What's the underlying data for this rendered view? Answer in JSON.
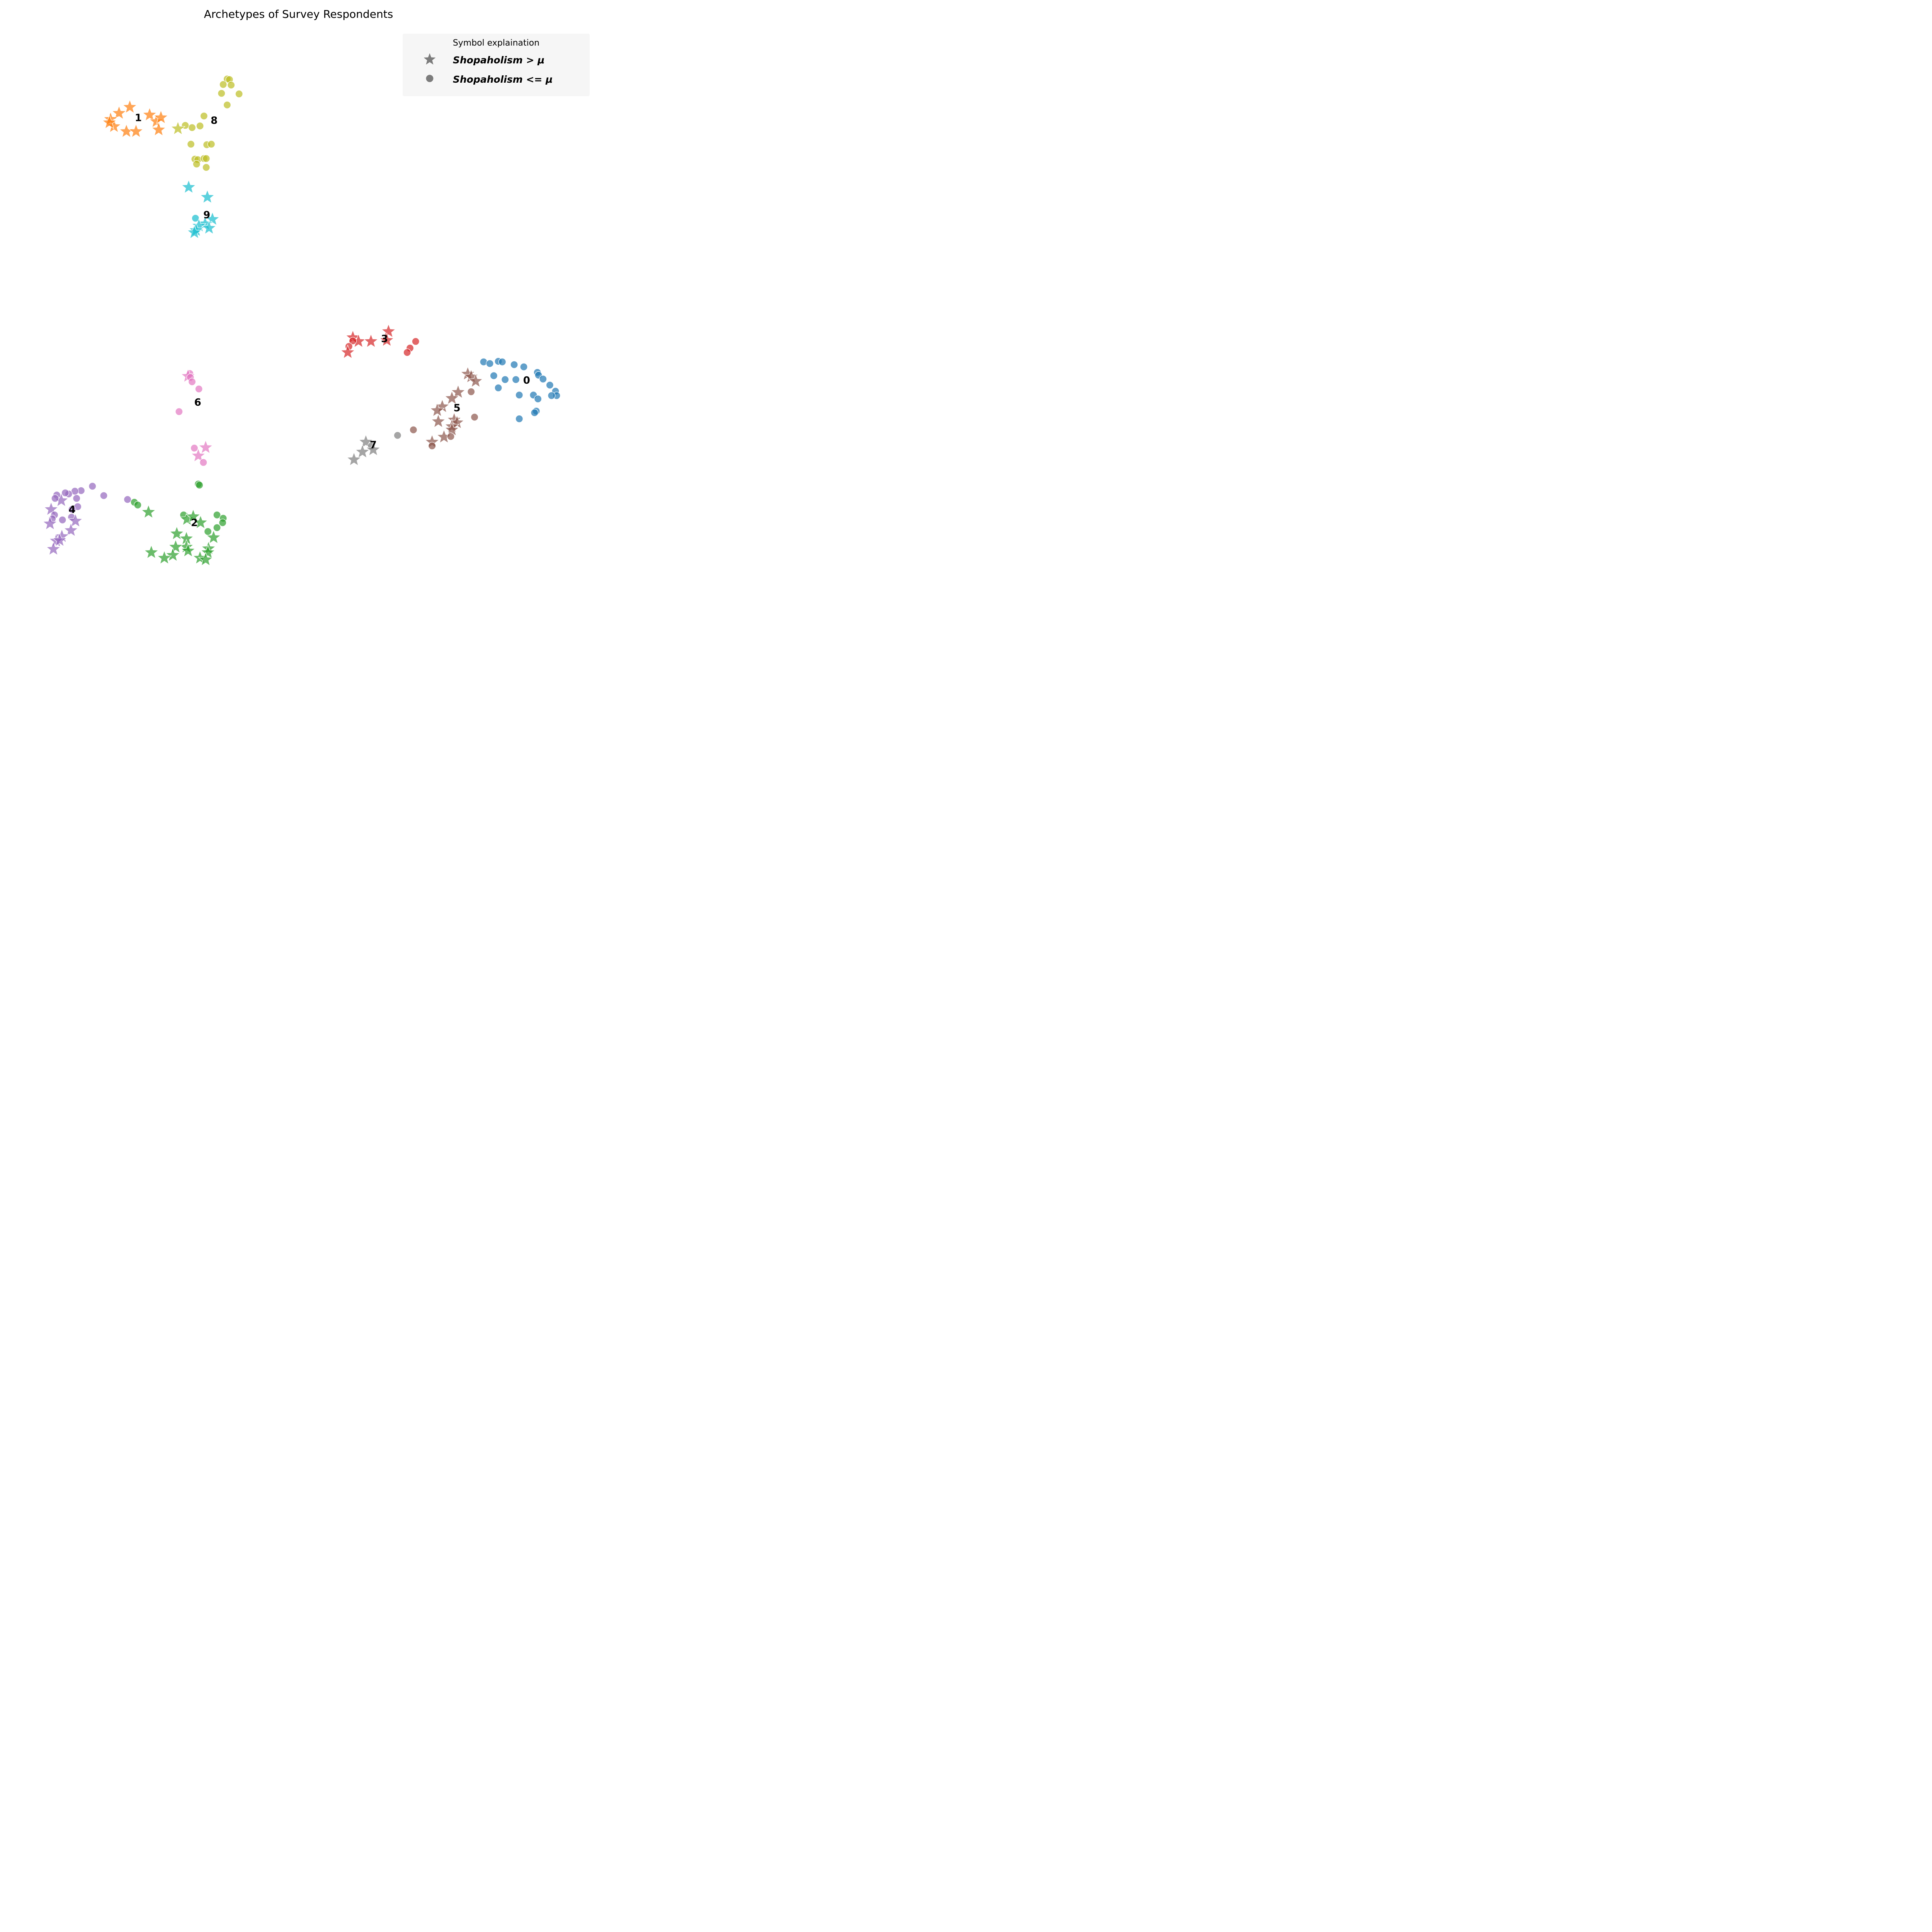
{
  "chart_data": {
    "type": "scatter",
    "title": "Archetypes of Survey Respondents",
    "xlabel": "",
    "ylabel": "",
    "axes_visible": false,
    "grid": false,
    "xlim": [
      0,
      100
    ],
    "ylim": [
      0,
      100
    ],
    "legend": {
      "title": "Symbol explaination",
      "placement": "top-right",
      "entries": [
        {
          "marker": "star",
          "label": "Shopaholism > μ"
        },
        {
          "marker": "circle",
          "label": "Shopaholism <= μ"
        }
      ]
    },
    "clusters": [
      {
        "label": "0",
        "color": "#1f77b4",
        "label_pos": [
          90.3,
          36.8
        ],
        "points": [
          [
            82.7,
            40.1,
            "c"
          ],
          [
            83.8,
            39.8,
            "c"
          ],
          [
            85.3,
            40.2,
            "c"
          ],
          [
            86.0,
            40.1,
            "c"
          ],
          [
            88.1,
            39.6,
            "c"
          ],
          [
            89.8,
            39.2,
            "c"
          ],
          [
            92.2,
            38.2,
            "c"
          ],
          [
            84.5,
            37.6,
            "c"
          ],
          [
            85.3,
            35.4,
            "c"
          ],
          [
            86.5,
            36.9,
            "c"
          ],
          [
            88.4,
            36.9,
            "c"
          ],
          [
            92.4,
            37.7,
            "c"
          ],
          [
            93.2,
            37.0,
            "c"
          ],
          [
            94.4,
            35.9,
            "c"
          ],
          [
            95.4,
            34.8,
            "c"
          ],
          [
            95.6,
            34.0,
            "c"
          ],
          [
            94.7,
            34.0,
            "c"
          ],
          [
            91.5,
            34.1,
            "c"
          ],
          [
            92.3,
            33.4,
            "c"
          ],
          [
            89.0,
            34.1,
            "c"
          ],
          [
            92.0,
            31.2,
            "c"
          ],
          [
            91.7,
            30.9,
            "c"
          ],
          [
            89.0,
            29.8,
            "c"
          ]
        ]
      },
      {
        "label": "1",
        "color": "#ff7f0e",
        "label_pos": [
          21.7,
          84.3
        ],
        "points": [
          [
            20.2,
            86.2,
            "s"
          ],
          [
            18.3,
            85.1,
            "s"
          ],
          [
            16.8,
            84.0,
            "s"
          ],
          [
            17.4,
            82.7,
            "s"
          ],
          [
            19.6,
            81.8,
            "s"
          ],
          [
            21.3,
            81.8,
            "s"
          ],
          [
            23.7,
            84.8,
            "s"
          ],
          [
            24.9,
            83.6,
            "s"
          ],
          [
            25.7,
            84.3,
            "s"
          ],
          [
            25.3,
            82.1,
            "s"
          ],
          [
            16.6,
            83.4,
            "s"
          ]
        ]
      },
      {
        "label": "2",
        "color": "#2ca02c",
        "label_pos": [
          31.6,
          11.0
        ],
        "points": [
          [
            32.3,
            18.0,
            "c"
          ],
          [
            32.5,
            17.8,
            "c"
          ],
          [
            21.0,
            14.7,
            "c"
          ],
          [
            21.6,
            14.2,
            "c"
          ],
          [
            23.5,
            12.9,
            "s"
          ],
          [
            29.7,
            12.4,
            "c"
          ],
          [
            30.3,
            11.6,
            "s"
          ],
          [
            31.4,
            12.1,
            "s"
          ],
          [
            32.7,
            11.0,
            "s"
          ],
          [
            35.6,
            12.4,
            "c"
          ],
          [
            36.7,
            11.8,
            "c"
          ],
          [
            36.6,
            11.0,
            "c"
          ],
          [
            35.6,
            10.1,
            "c"
          ],
          [
            34.0,
            9.4,
            "c"
          ],
          [
            35.0,
            8.3,
            "s"
          ],
          [
            28.5,
            9.0,
            "s"
          ],
          [
            30.2,
            8.1,
            "s"
          ],
          [
            30.2,
            6.6,
            "s"
          ],
          [
            30.5,
            5.9,
            "s"
          ],
          [
            28.3,
            6.6,
            "s"
          ],
          [
            27.8,
            5.1,
            "s"
          ],
          [
            26.3,
            4.6,
            "s"
          ],
          [
            24.0,
            5.6,
            "s"
          ],
          [
            34.1,
            6.3,
            "s"
          ],
          [
            34.0,
            5.6,
            "s"
          ],
          [
            32.6,
            4.6,
            "s"
          ],
          [
            33.6,
            4.3,
            "s"
          ]
        ]
      },
      {
        "label": "3",
        "color": "#d62728",
        "label_pos": [
          65.2,
          44.3
        ],
        "points": [
          [
            65.9,
            45.6,
            "s"
          ],
          [
            59.6,
            44.5,
            "s"
          ],
          [
            60.6,
            43.8,
            "s"
          ],
          [
            62.8,
            43.8,
            "s"
          ],
          [
            65.6,
            44.0,
            "s"
          ],
          [
            59.6,
            43.9,
            "c"
          ],
          [
            58.9,
            42.9,
            "c"
          ],
          [
            58.7,
            41.8,
            "s"
          ],
          [
            70.7,
            43.8,
            "c"
          ],
          [
            69.7,
            42.6,
            "c"
          ],
          [
            69.2,
            41.8,
            "c"
          ]
        ]
      },
      {
        "label": "4",
        "color": "#9467bd",
        "label_pos": [
          10.0,
          13.4
        ],
        "points": [
          [
            13.6,
            17.6,
            "c"
          ],
          [
            11.6,
            16.8,
            "c"
          ],
          [
            10.5,
            16.7,
            "c"
          ],
          [
            9.4,
            16.2,
            "c"
          ],
          [
            7.3,
            16.0,
            "c"
          ],
          [
            8.8,
            16.4,
            "c"
          ],
          [
            15.6,
            15.9,
            "c"
          ],
          [
            19.8,
            15.2,
            "c"
          ],
          [
            10.8,
            15.4,
            "c"
          ],
          [
            8.1,
            15.0,
            "s"
          ],
          [
            7.0,
            15.4,
            "c"
          ],
          [
            11.0,
            13.9,
            "c"
          ],
          [
            10.0,
            13.4,
            "c"
          ],
          [
            6.3,
            13.4,
            "s"
          ],
          [
            6.9,
            12.4,
            "c"
          ],
          [
            6.5,
            11.7,
            "c"
          ],
          [
            8.3,
            11.5,
            "c"
          ],
          [
            9.9,
            12.0,
            "c"
          ],
          [
            10.6,
            11.3,
            "s"
          ],
          [
            6.1,
            10.8,
            "s"
          ],
          [
            9.8,
            9.6,
            "s"
          ],
          [
            8.2,
            8.5,
            "s"
          ],
          [
            7.2,
            7.7,
            "s"
          ],
          [
            7.8,
            7.8,
            "s"
          ],
          [
            6.7,
            6.2,
            "s"
          ]
        ]
      },
      {
        "label": "5",
        "color": "#8c564b",
        "label_pos": [
          78.0,
          31.8
        ],
        "points": [
          [
            79.9,
            37.9,
            "s"
          ],
          [
            80.5,
            37.4,
            "s"
          ],
          [
            81.3,
            36.6,
            "s"
          ],
          [
            78.2,
            34.6,
            "s"
          ],
          [
            77.1,
            33.5,
            "s"
          ],
          [
            75.4,
            32.0,
            "s"
          ],
          [
            74.5,
            31.3,
            "s"
          ],
          [
            77.5,
            29.6,
            "s"
          ],
          [
            78.0,
            29.1,
            "s"
          ],
          [
            74.7,
            29.3,
            "s"
          ],
          [
            77.1,
            28.4,
            "s"
          ],
          [
            77.1,
            27.8,
            "s"
          ],
          [
            75.7,
            26.5,
            "s"
          ],
          [
            73.6,
            25.6,
            "s"
          ],
          [
            76.9,
            26.6,
            "c"
          ],
          [
            80.5,
            34.7,
            "c"
          ],
          [
            81.1,
            30.1,
            "c"
          ],
          [
            70.3,
            27.8,
            "c"
          ],
          [
            73.6,
            24.9,
            "c"
          ]
        ]
      },
      {
        "label": "6",
        "color": "#e377c2",
        "label_pos": [
          32.2,
          32.8
        ],
        "points": [
          [
            30.8,
            38.0,
            "c"
          ],
          [
            30.5,
            37.5,
            "s"
          ],
          [
            30.9,
            37.3,
            "c"
          ],
          [
            31.2,
            36.5,
            "c"
          ],
          [
            32.4,
            35.2,
            "c"
          ],
          [
            28.9,
            31.1,
            "c"
          ],
          [
            31.6,
            24.5,
            "c"
          ],
          [
            33.6,
            24.6,
            "s"
          ],
          [
            32.3,
            23.1,
            "s"
          ],
          [
            33.2,
            21.9,
            "c"
          ]
        ]
      },
      {
        "label": "7",
        "color": "#7f7f7f",
        "label_pos": [
          63.2,
          25.1
        ],
        "points": [
          [
            67.5,
            26.8,
            "c"
          ],
          [
            61.9,
            25.6,
            "s"
          ],
          [
            62.9,
            24.9,
            "c"
          ],
          [
            61.3,
            23.8,
            "s"
          ],
          [
            63.2,
            24.2,
            "s"
          ],
          [
            59.8,
            22.4,
            "s"
          ]
        ]
      },
      {
        "label": "8",
        "color": "#bcbd22",
        "label_pos": [
          35.1,
          83.8
        ],
        "points": [
          [
            37.4,
            91.3,
            "c"
          ],
          [
            37.8,
            91.2,
            "c"
          ],
          [
            36.7,
            90.3,
            "c"
          ],
          [
            38.1,
            90.2,
            "c"
          ],
          [
            36.4,
            88.7,
            "c"
          ],
          [
            39.5,
            88.6,
            "c"
          ],
          [
            37.4,
            86.6,
            "c"
          ],
          [
            33.3,
            84.6,
            "c"
          ],
          [
            32.6,
            82.8,
            "c"
          ],
          [
            31.2,
            82.5,
            "c"
          ],
          [
            30.0,
            82.9,
            "c"
          ],
          [
            28.7,
            82.3,
            "s"
          ],
          [
            31.0,
            79.5,
            "c"
          ],
          [
            33.8,
            79.4,
            "c"
          ],
          [
            34.6,
            79.5,
            "c"
          ],
          [
            31.7,
            76.8,
            "c"
          ],
          [
            32.2,
            76.7,
            "c"
          ],
          [
            33.3,
            76.9,
            "c"
          ],
          [
            33.7,
            76.9,
            "c"
          ],
          [
            32.0,
            75.9,
            "c"
          ],
          [
            33.7,
            75.3,
            "c"
          ]
        ]
      },
      {
        "label": "9",
        "color": "#17becf",
        "label_pos": [
          33.8,
          66.7
        ],
        "points": [
          [
            30.6,
            71.7,
            "s"
          ],
          [
            33.9,
            69.9,
            "s"
          ],
          [
            31.8,
            66.1,
            "c"
          ],
          [
            34.8,
            65.9,
            "s"
          ],
          [
            33.5,
            65.1,
            "s"
          ],
          [
            32.4,
            64.7,
            "s"
          ],
          [
            34.2,
            64.3,
            "s"
          ],
          [
            31.9,
            63.9,
            "s"
          ],
          [
            31.6,
            63.5,
            "s"
          ]
        ]
      }
    ]
  }
}
